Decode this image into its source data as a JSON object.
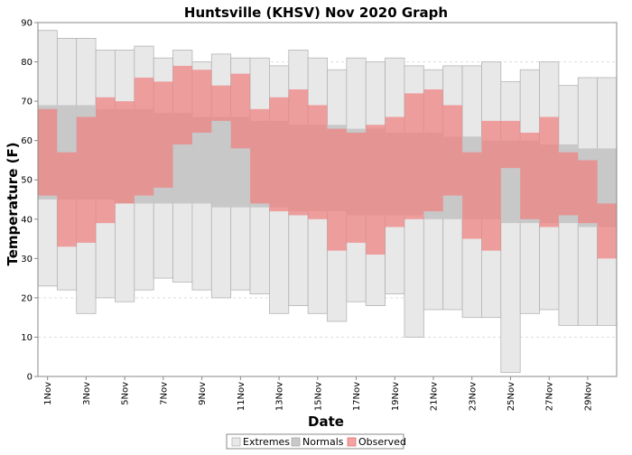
{
  "chart_data": {
    "type": "bar",
    "title": "Huntsville (KHSV) Nov 2020 Graph",
    "xlabel": "Date",
    "ylabel": "Temperature (F)",
    "ylim": [
      0,
      90
    ],
    "yticks": [
      0,
      10,
      20,
      30,
      40,
      50,
      60,
      70,
      80,
      90
    ],
    "grid": true,
    "legend_position": "bottom",
    "x_tick_labels": [
      "1Nov",
      "3Nov",
      "5Nov",
      "7Nov",
      "9Nov",
      "11Nov",
      "13Nov",
      "15Nov",
      "17Nov",
      "19Nov",
      "21Nov",
      "23Nov",
      "25Nov",
      "27Nov",
      "29Nov"
    ],
    "days": [
      1,
      2,
      3,
      4,
      5,
      6,
      7,
      8,
      9,
      10,
      11,
      12,
      13,
      14,
      15,
      16,
      17,
      18,
      19,
      20,
      21,
      22,
      23,
      24,
      25,
      26,
      27,
      28,
      29,
      30
    ],
    "series": [
      {
        "name": "Extremes",
        "color": "#e8e8e8",
        "high": [
          88,
          86,
          86,
          83,
          83,
          84,
          81,
          83,
          80,
          82,
          81,
          81,
          79,
          83,
          81,
          78,
          81,
          80,
          81,
          79,
          78,
          79,
          79,
          80,
          75,
          78,
          80,
          74,
          76,
          76
        ],
        "low": [
          23,
          22,
          16,
          20,
          19,
          22,
          25,
          24,
          22,
          20,
          22,
          21,
          16,
          18,
          16,
          14,
          19,
          18,
          21,
          10,
          17,
          17,
          15,
          15,
          1,
          16,
          17,
          13,
          13,
          13
        ]
      },
      {
        "name": "Normals",
        "color": "#c8c8c8",
        "high": [
          69,
          69,
          69,
          68,
          68,
          68,
          67,
          67,
          66,
          66,
          66,
          65,
          65,
          64,
          64,
          64,
          63,
          63,
          62,
          62,
          62,
          61,
          61,
          60,
          60,
          60,
          59,
          59,
          58,
          58
        ],
        "low": [
          45,
          45,
          45,
          45,
          44,
          44,
          44,
          44,
          44,
          43,
          43,
          43,
          43,
          42,
          42,
          42,
          41,
          41,
          41,
          41,
          40,
          40,
          40,
          40,
          39,
          39,
          39,
          39,
          38,
          38
        ]
      },
      {
        "name": "Observed",
        "color": "#f08080",
        "high": [
          68,
          57,
          66,
          71,
          70,
          76,
          75,
          79,
          78,
          74,
          77,
          68,
          71,
          73,
          69,
          63,
          62,
          64,
          66,
          72,
          73,
          69,
          57,
          65,
          65,
          62,
          66,
          57,
          55,
          44
        ],
        "low": [
          46,
          33,
          34,
          39,
          44,
          46,
          48,
          59,
          62,
          65,
          58,
          44,
          42,
          41,
          40,
          32,
          34,
          31,
          38,
          40,
          42,
          46,
          35,
          32,
          53,
          40,
          38,
          41,
          39,
          30
        ]
      }
    ]
  }
}
